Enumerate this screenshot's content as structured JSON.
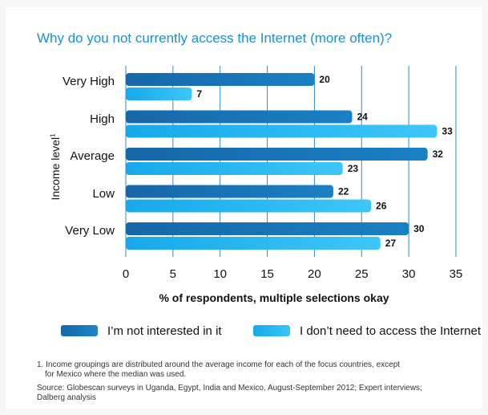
{
  "title": "Why do you not currently access the Internet (more often)?",
  "colors": {
    "series1": "#1667a8",
    "series2": "#16a9ea",
    "grid": "#2b8ad0",
    "title": "#1a8fd8"
  },
  "chart_data": {
    "type": "bar",
    "orientation": "horizontal",
    "title": "Why do you not currently access the Internet (more often)?",
    "ylabel": "Income level",
    "ylabel_sup": "1",
    "xlabel": "% of respondents, multiple selections okay",
    "categories": [
      "Very High",
      "High",
      "Average",
      "Low",
      "Very Low"
    ],
    "series": [
      {
        "name": "I'm not interested in it",
        "values": [
          20,
          24,
          32,
          22,
          30
        ]
      },
      {
        "name": "I don't need to access the Internet",
        "values": [
          7,
          33,
          23,
          26,
          27
        ]
      }
    ],
    "xlim": [
      0,
      35
    ],
    "xticks": [
      "0",
      "5",
      "10",
      "15",
      "20",
      "25",
      "30",
      "35"
    ],
    "grid": true,
    "legend": "bottom"
  },
  "legend": {
    "items": [
      "I’m not interested in it",
      "I don’t need to access the Internet"
    ]
  },
  "footnote": {
    "line1": "1. Income groupings are distributed around the average income for each of the focus countries, except",
    "line2": "for Mexico where the median was used.",
    "source1": "Source: Globescan surveys in Uganda, Egypt, India and Mexico, August-September 2012; Expert interviews;",
    "source2": "Dalberg analysis"
  }
}
